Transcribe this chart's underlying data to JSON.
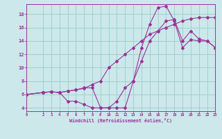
{
  "xlabel": "Windchill (Refroidissement éolien,°C)",
  "bg_color": "#cce8ea",
  "line_color": "#993399",
  "grid_color": "#99cccc",
  "xlim": [
    0,
    23
  ],
  "ylim": [
    3.5,
    19.5
  ],
  "xticks": [
    0,
    2,
    3,
    4,
    5,
    6,
    7,
    8,
    9,
    10,
    11,
    12,
    13,
    14,
    15,
    16,
    17,
    18,
    19,
    20,
    21,
    22,
    23
  ],
  "yticks": [
    4,
    6,
    8,
    10,
    12,
    14,
    16,
    18
  ],
  "line1_x": [
    0,
    2,
    3,
    4,
    5,
    6,
    7,
    8,
    9,
    10,
    11,
    12,
    13,
    14,
    15,
    16,
    17,
    18,
    19,
    20,
    21,
    22,
    23
  ],
  "line1_y": [
    6,
    6.3,
    6.4,
    6.3,
    6.5,
    6.7,
    6.9,
    7.5,
    8.0,
    10.0,
    11.0,
    12.0,
    13.0,
    14.0,
    15.0,
    15.5,
    16.0,
    16.5,
    17.0,
    17.3,
    17.5,
    17.5,
    17.5
  ],
  "line2_x": [
    0,
    2,
    3,
    4,
    5,
    6,
    7,
    8,
    9,
    10,
    11,
    12,
    13,
    14,
    15,
    16,
    17,
    18,
    19,
    20,
    21,
    22,
    23
  ],
  "line2_y": [
    6,
    6.3,
    6.4,
    6.3,
    6.5,
    6.7,
    7.0,
    7.0,
    4.0,
    4.0,
    4.0,
    4.0,
    8.0,
    13.0,
    16.5,
    19.0,
    19.2,
    17.0,
    13.0,
    14.2,
    14.0,
    14.0,
    13.0
  ],
  "line3_x": [
    0,
    2,
    3,
    4,
    5,
    6,
    7,
    8,
    9,
    10,
    11,
    12,
    13,
    14,
    15,
    16,
    17,
    18,
    19,
    20,
    21,
    22,
    23
  ],
  "line3_y": [
    6,
    6.3,
    6.4,
    6.3,
    5.0,
    5.0,
    4.5,
    4.0,
    4.0,
    4.0,
    5.0,
    7.0,
    8.0,
    11.0,
    14.0,
    15.5,
    17.0,
    17.2,
    14.0,
    15.5,
    14.3,
    14.0,
    13.0
  ]
}
